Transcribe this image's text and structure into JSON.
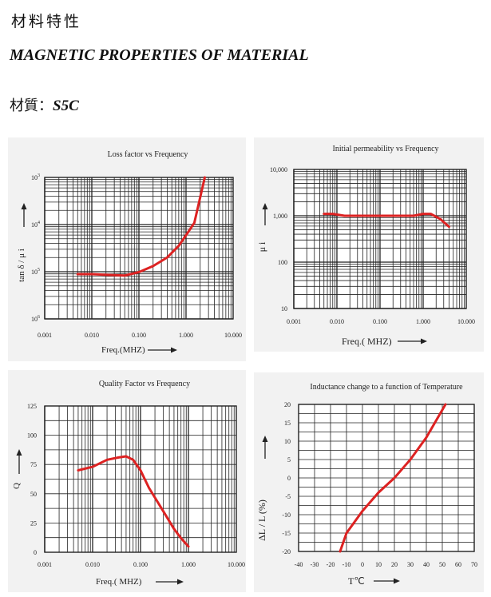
{
  "header": {
    "title_cn": "材料特性",
    "title_en": "MAGNETIC PROPERTIES OF MATERIAL",
    "material_label": "材質：",
    "material_code": "S5C"
  },
  "colors": {
    "curve": "#dd2222",
    "grid": "#222222",
    "panel_bg": "#f2f2f2"
  },
  "chart_data": [
    {
      "id": "loss",
      "type": "line",
      "title": "Loss factor vs Frequency",
      "xlabel": "Freq.(MHZ)",
      "ylabel": "tan δ / μ i",
      "x_scale": "log",
      "y_scale": "log",
      "xlim": [
        0.001,
        10
      ],
      "ylim": [
        1e-06,
        0.001
      ],
      "x_ticks": [
        {
          "v": 0.001,
          "label": "0.001"
        },
        {
          "v": 0.01,
          "label": "0.010"
        },
        {
          "v": 0.1,
          "label": "0.100"
        },
        {
          "v": 1,
          "label": "1.000"
        },
        {
          "v": 10,
          "label": "10.000"
        }
      ],
      "y_ticks": [
        {
          "v": 0.001,
          "label": "10",
          "exp": "3"
        },
        {
          "v": 0.0001,
          "label": "10",
          "exp": "4"
        },
        {
          "v": 1e-05,
          "label": "10",
          "exp": "5"
        },
        {
          "v": 1e-06,
          "label": "10",
          "exp": "6"
        }
      ],
      "series": [
        {
          "points": [
            [
              0.005,
              8.9e-06
            ],
            [
              0.01,
              8.9e-06
            ],
            [
              0.02,
              8.6e-06
            ],
            [
              0.05,
              8.3e-06
            ],
            [
              0.1,
              9.8e-06
            ],
            [
              0.2,
              1.32e-05
            ],
            [
              0.4,
              2.01e-05
            ],
            [
              0.7,
              3.55e-05
            ],
            [
              1,
              5.92e-05
            ],
            [
              1.5,
              0.000109
            ],
            [
              2.5,
              0.001
            ]
          ]
        }
      ]
    },
    {
      "id": "perm",
      "type": "line",
      "title": "Initial permeability vs Frequency",
      "xlabel": "Freq.( MHZ)",
      "ylabel": "μ i",
      "x_scale": "log",
      "y_scale": "log",
      "xlim": [
        0.001,
        10
      ],
      "ylim": [
        10,
        10000
      ],
      "x_ticks": [
        {
          "v": 0.001,
          "label": "0.001"
        },
        {
          "v": 0.01,
          "label": "0.010"
        },
        {
          "v": 0.1,
          "label": "0.100"
        },
        {
          "v": 1,
          "label": "1.000"
        },
        {
          "v": 10,
          "label": "10.000"
        }
      ],
      "y_ticks": [
        {
          "v": 10000,
          "label": "10,000"
        },
        {
          "v": 1000,
          "label": "1,000"
        },
        {
          "v": 100,
          "label": "100"
        },
        {
          "v": 10,
          "label": "10"
        }
      ],
      "series": [
        {
          "points": [
            [
              0.005,
              1100
            ],
            [
              0.008,
              1100
            ],
            [
              0.015,
              1000
            ],
            [
              0.05,
              1000
            ],
            [
              0.1,
              1000
            ],
            [
              0.3,
              1000
            ],
            [
              0.6,
              1000
            ],
            [
              1,
              1100
            ],
            [
              1.5,
              1100
            ],
            [
              2.5,
              850
            ],
            [
              4,
              580
            ]
          ]
        }
      ]
    },
    {
      "id": "quality",
      "type": "line",
      "title": "Quality Factor vs Frequency",
      "xlabel": "Freq.( MHZ)",
      "ylabel": "Q",
      "x_scale": "log",
      "y_scale": "linear",
      "xlim": [
        0.001,
        10
      ],
      "ylim": [
        0,
        125
      ],
      "x_ticks": [
        {
          "v": 0.001,
          "label": "0.001"
        },
        {
          "v": 0.01,
          "label": "0.010"
        },
        {
          "v": 0.1,
          "label": "0.100"
        },
        {
          "v": 1,
          "label": "1.000"
        },
        {
          "v": 10,
          "label": "10.000"
        }
      ],
      "y_ticks": [
        {
          "v": 125,
          "label": "125"
        },
        {
          "v": 100,
          "label": "100"
        },
        {
          "v": 75,
          "label": "75"
        },
        {
          "v": 50,
          "label": "50"
        },
        {
          "v": 25,
          "label": "25"
        },
        {
          "v": 0,
          "label": "0"
        }
      ],
      "series": [
        {
          "points": [
            [
              0.005,
              70
            ],
            [
              0.01,
              73
            ],
            [
              0.02,
              79
            ],
            [
              0.035,
              81
            ],
            [
              0.05,
              82
            ],
            [
              0.07,
              79
            ],
            [
              0.1,
              70
            ],
            [
              0.15,
              55
            ],
            [
              0.3,
              35
            ],
            [
              0.5,
              20
            ],
            [
              0.7,
              12
            ],
            [
              1,
              5
            ]
          ]
        }
      ]
    },
    {
      "id": "temp",
      "type": "line",
      "title": "Inductance change to a function  of  Temperature",
      "xlabel": "T℃",
      "ylabel": "ΔL / L (%)",
      "x_scale": "linear",
      "y_scale": "linear",
      "xlim": [
        -40,
        70
      ],
      "ylim": [
        -20,
        20
      ],
      "x_ticks": [
        {
          "v": -40,
          "label": "-40"
        },
        {
          "v": -30,
          "label": "-30"
        },
        {
          "v": -20,
          "label": "-20"
        },
        {
          "v": -10,
          "label": "-10"
        },
        {
          "v": 0,
          "label": "0"
        },
        {
          "v": 10,
          "label": "10"
        },
        {
          "v": 20,
          "label": "20"
        },
        {
          "v": 30,
          "label": "30"
        },
        {
          "v": 40,
          "label": "40"
        },
        {
          "v": 50,
          "label": "50"
        },
        {
          "v": 60,
          "label": "60"
        },
        {
          "v": 70,
          "label": "70"
        }
      ],
      "y_ticks": [
        {
          "v": 20,
          "label": "20"
        },
        {
          "v": 15,
          "label": "15"
        },
        {
          "v": 10,
          "label": "10"
        },
        {
          "v": 5,
          "label": "5"
        },
        {
          "v": 0,
          "label": "0"
        },
        {
          "v": -5,
          "label": "-5"
        },
        {
          "v": -10,
          "label": "-10"
        },
        {
          "v": -15,
          "label": "-15"
        },
        {
          "v": -20,
          "label": "-20"
        }
      ],
      "series": [
        {
          "points": [
            [
              -14,
              -20
            ],
            [
              -10,
              -15
            ],
            [
              0,
              -9
            ],
            [
              10,
              -4
            ],
            [
              20,
              0
            ],
            [
              30,
              5
            ],
            [
              40,
              11
            ],
            [
              52,
              20
            ]
          ]
        }
      ]
    }
  ]
}
